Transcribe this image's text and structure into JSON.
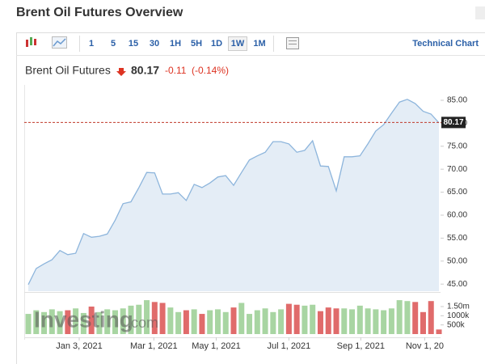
{
  "page": {
    "title": "Brent Oil Futures Overview",
    "toolbar": [
      "1",
      "5",
      "15",
      "30",
      "1H",
      "5H",
      "1D",
      "1W",
      "1M"
    ],
    "selected": "1W",
    "technical_chart": "Technical Chart",
    "instrument": "Brent Oil Futures",
    "change": "-0.11",
    "change_pct": "(-0.14%)",
    "watermark": "Investing",
    "watermark_suffix": ".com"
  },
  "chart_data": [
    {
      "type": "area",
      "line_color": "#8db5dc",
      "fill_color": "#e4edf6",
      "values": [
        44.9,
        48.4,
        49.4,
        50.3,
        52.3,
        51.4,
        51.7,
        56.0,
        55.2,
        55.4,
        55.9,
        58.9,
        62.5,
        62.9,
        66.0,
        69.3,
        69.2,
        64.6,
        64.6,
        64.9,
        63.2,
        66.7,
        66.0,
        67.0,
        68.3,
        68.6,
        66.5,
        69.3,
        72.0,
        72.9,
        73.7,
        76.0,
        76.0,
        75.5,
        73.7,
        74.1,
        76.2,
        70.7,
        70.6,
        65.3,
        72.7,
        72.7,
        72.9,
        75.5,
        78.3,
        79.7,
        82.2,
        84.6,
        85.2,
        84.3,
        82.6,
        82.0,
        80.1
      ],
      "last_price": 80.17,
      "last_price_color": "#c0392b",
      "xlim": [
        0,
        52
      ],
      "xticks": [
        {
          "value": 6.45,
          "label": "Jan 3, 2021"
        },
        {
          "value": 15.9,
          "label": "Mar 1, 2021"
        },
        {
          "value": 23.8,
          "label": "May 1, 2021"
        },
        {
          "value": 33.0,
          "label": "Jul 1, 2021"
        },
        {
          "value": 42.1,
          "label": "Sep 1, 2021"
        },
        {
          "value": 50.2,
          "label": "Nov 1, 20"
        }
      ],
      "ylim": [
        43.45,
        87.46
      ],
      "yticks": [
        {
          "value": 45,
          "label": "45.00"
        },
        {
          "value": 50,
          "label": "50.00"
        },
        {
          "value": 55,
          "label": "55.00"
        },
        {
          "value": 60,
          "label": "60.00"
        },
        {
          "value": 65,
          "label": "65.00"
        },
        {
          "value": 70,
          "label": "70.00"
        },
        {
          "value": 75,
          "label": "75.00"
        },
        {
          "value": 80,
          "label": "80.00"
        },
        {
          "value": 85,
          "label": "85.00"
        }
      ]
    },
    {
      "type": "bar",
      "up_color": "#a8d5a2",
      "down_color": "#e06b6b",
      "values": [
        1100000,
        1300000,
        1200000,
        1350000,
        1250000,
        1300000,
        1400000,
        1150000,
        1500000,
        1200000,
        1350000,
        1300000,
        1400000,
        1550000,
        1600000,
        1850000,
        1750000,
        1700000,
        1450000,
        1200000,
        1300000,
        1350000,
        1100000,
        1300000,
        1350000,
        1200000,
        1450000,
        1700000,
        1100000,
        1300000,
        1400000,
        1200000,
        1350000,
        1650000,
        1600000,
        1550000,
        1600000,
        1250000,
        1450000,
        1400000,
        1400000,
        1350000,
        1550000,
        1400000,
        1350000,
        1300000,
        1400000,
        1850000,
        1800000,
        1750000,
        1200000,
        1800000,
        250000
      ],
      "ylim": [
        0,
        2250000
      ],
      "yticks": [
        {
          "value": 500000,
          "label": "500k"
        },
        {
          "value": 1000000,
          "label": "1000k"
        },
        {
          "value": 1500000,
          "label": "1.50m"
        }
      ]
    }
  ]
}
